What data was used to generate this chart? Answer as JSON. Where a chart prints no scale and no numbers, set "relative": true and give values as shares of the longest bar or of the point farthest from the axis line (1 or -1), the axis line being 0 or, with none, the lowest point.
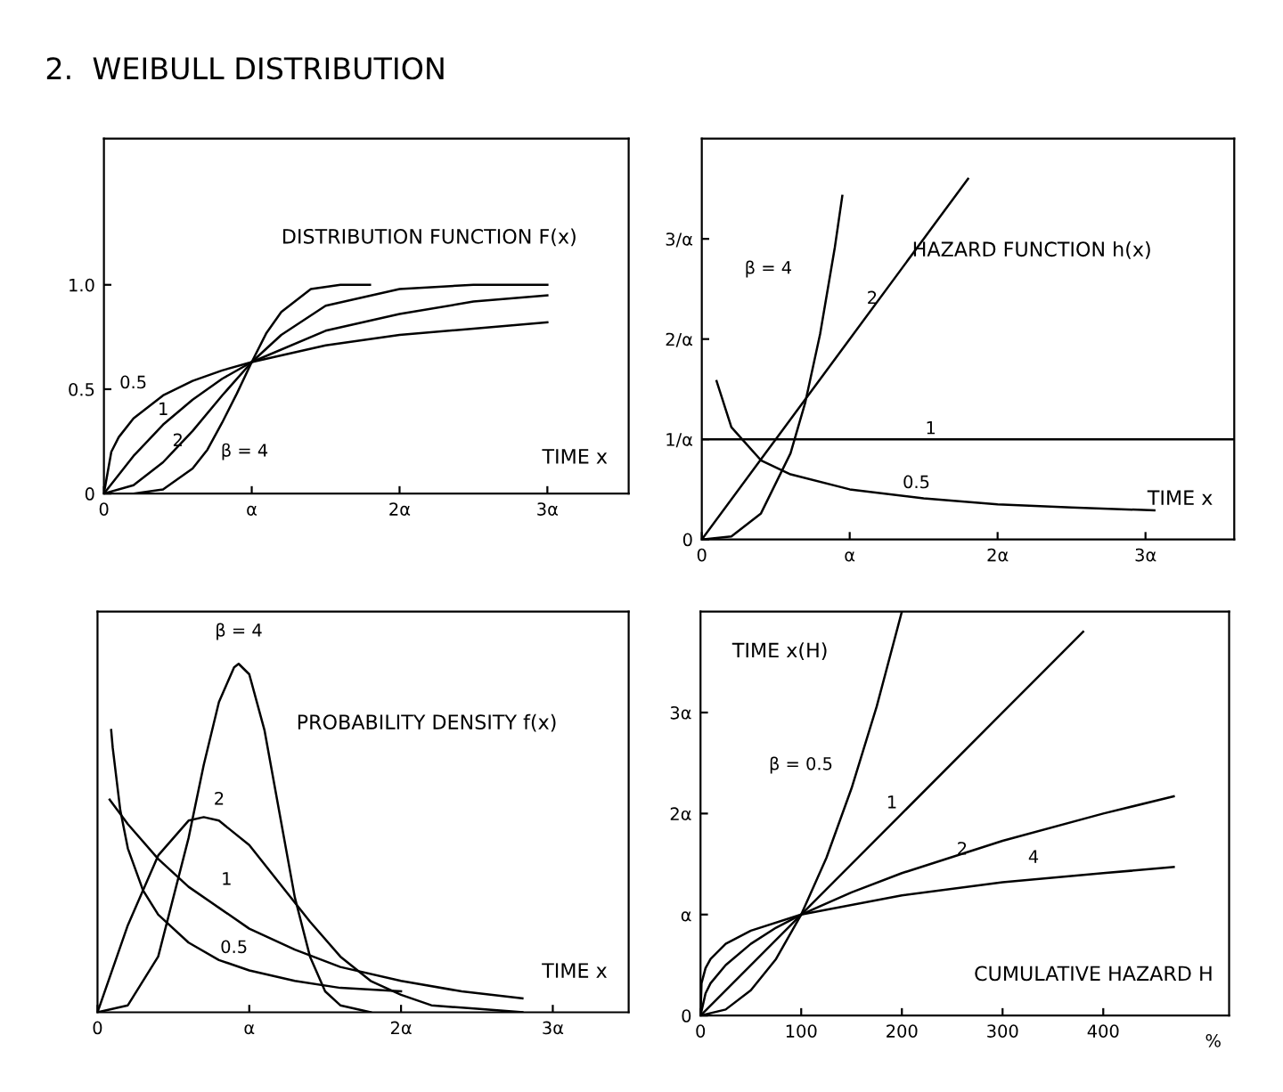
{
  "chart_data": [
    {
      "type": "line",
      "title": "2.  WEIBULL DISTRIBUTION",
      "subtitle": "DISTRIBUTION FUNCTION F(x)",
      "xlabel": "TIME x",
      "xlim": [
        0,
        3.55
      ],
      "ylim": [
        0,
        1.7
      ],
      "xticks": [
        0,
        {
          "value": 1,
          "label": "α"
        },
        {
          "value": 2,
          "label": "2α"
        },
        {
          "value": 3,
          "label": "3α"
        }
      ],
      "yticks": [
        0,
        0.5,
        {
          "value": 1,
          "label": "1.0"
        }
      ],
      "series": [
        {
          "name": "0.5",
          "color": "#000000",
          "x": [
            0,
            0.05,
            0.1,
            0.2,
            0.4,
            0.6,
            0.8,
            1,
            1.5,
            2,
            2.5,
            3
          ],
          "values": [
            0,
            0.2,
            0.27,
            0.36,
            0.47,
            0.54,
            0.59,
            0.63,
            0.71,
            0.76,
            0.79,
            0.82
          ]
        },
        {
          "name": "1",
          "color": "#000000",
          "x": [
            0,
            0.2,
            0.4,
            0.6,
            0.8,
            1,
            1.5,
            2,
            2.5,
            3
          ],
          "values": [
            0,
            0.18,
            0.33,
            0.45,
            0.55,
            0.63,
            0.78,
            0.86,
            0.92,
            0.95
          ]
        },
        {
          "name": "2",
          "color": "#000000",
          "x": [
            0,
            0.2,
            0.4,
            0.6,
            0.8,
            1,
            1.2,
            1.5,
            2,
            2.5,
            3
          ],
          "values": [
            0,
            0.04,
            0.15,
            0.3,
            0.47,
            0.63,
            0.76,
            0.9,
            0.98,
            1.0,
            1.0
          ]
        },
        {
          "name": "β = 4",
          "color": "#000000",
          "x": [
            0,
            0.2,
            0.4,
            0.6,
            0.7,
            0.8,
            0.9,
            1,
            1.1,
            1.2,
            1.4,
            1.6,
            1.8
          ],
          "values": [
            0,
            0,
            0.02,
            0.12,
            0.21,
            0.34,
            0.48,
            0.63,
            0.77,
            0.87,
            0.98,
            1.0,
            1.0
          ]
        }
      ]
    },
    {
      "type": "line",
      "subtitle": "HAZARD FUNCTION h(x)",
      "xlabel": "TIME x",
      "xlim": [
        0,
        3.6
      ],
      "ylim": [
        0,
        4
      ],
      "xticks": [
        0,
        {
          "value": 1,
          "label": "α"
        },
        {
          "value": 2,
          "label": "2α"
        },
        {
          "value": 3,
          "label": "3α"
        }
      ],
      "yticks": [
        0,
        {
          "value": 1,
          "label": "1/α"
        },
        {
          "value": 2,
          "label": "2/α"
        },
        {
          "value": 3,
          "label": "3/α"
        }
      ],
      "series": [
        {
          "name": "0.5",
          "color": "#000000",
          "x": [
            0.1,
            0.2,
            0.4,
            0.6,
            1,
            1.5,
            2,
            2.5,
            3.06
          ],
          "values": [
            1.58,
            1.12,
            0.79,
            0.65,
            0.5,
            0.41,
            0.35,
            0.32,
            0.29
          ]
        },
        {
          "name": "1",
          "color": "#000000",
          "x": [
            0,
            3.6
          ],
          "values": [
            1,
            1
          ]
        },
        {
          "name": "2",
          "color": "#000000",
          "x": [
            0,
            0.5,
            1,
            1.5,
            1.8
          ],
          "values": [
            0,
            1,
            2,
            3,
            3.6
          ]
        },
        {
          "name": "β = 4",
          "color": "#000000",
          "x": [
            0,
            0.2,
            0.4,
            0.6,
            0.7,
            0.8,
            0.9,
            0.95
          ],
          "values": [
            0,
            0.03,
            0.26,
            0.86,
            1.37,
            2.05,
            2.92,
            3.43
          ]
        }
      ]
    },
    {
      "type": "line",
      "subtitle": "PROBABILITY DENSITY f(x)",
      "xlabel": "TIME x",
      "relative": true,
      "tick_labels": "x",
      "xlim": [
        0,
        3.5
      ],
      "xticks": [
        0,
        {
          "value": 1,
          "label": "α"
        },
        {
          "value": 2,
          "label": "2α"
        },
        {
          "value": 3,
          "label": "3α"
        }
      ],
      "series": [
        {
          "name": "0.5",
          "color": "#000000",
          "x": [
            0.09,
            0.1,
            0.15,
            0.2,
            0.3,
            0.4,
            0.6,
            0.8,
            1,
            1.3,
            1.6,
            2
          ],
          "values": [
            0.81,
            0.76,
            0.58,
            0.47,
            0.35,
            0.28,
            0.2,
            0.15,
            0.12,
            0.09,
            0.07,
            0.06
          ]
        },
        {
          "name": "1",
          "color": "#000000",
          "x": [
            0.08,
            0.2,
            0.4,
            0.6,
            0.8,
            1,
            1.3,
            1.6,
            2,
            2.4,
            2.8
          ],
          "values": [
            0.61,
            0.54,
            0.44,
            0.36,
            0.3,
            0.24,
            0.18,
            0.13,
            0.09,
            0.06,
            0.04
          ]
        },
        {
          "name": "2",
          "color": "#000000",
          "x": [
            0,
            0.2,
            0.4,
            0.6,
            0.7,
            0.8,
            1,
            1.2,
            1.4,
            1.6,
            1.8,
            2,
            2.2,
            2.5,
            2.8
          ],
          "values": [
            0,
            0.25,
            0.45,
            0.55,
            0.56,
            0.55,
            0.48,
            0.37,
            0.26,
            0.16,
            0.09,
            0.05,
            0.02,
            0.01,
            0
          ]
        },
        {
          "name": "β = 4",
          "color": "#000000",
          "x": [
            0,
            0.2,
            0.4,
            0.6,
            0.7,
            0.8,
            0.9,
            0.93,
            1,
            1.1,
            1.2,
            1.3,
            1.4,
            1.5,
            1.6,
            1.8
          ],
          "values": [
            0,
            0.02,
            0.16,
            0.5,
            0.71,
            0.89,
            0.99,
            1,
            0.97,
            0.81,
            0.57,
            0.33,
            0.16,
            0.06,
            0.02,
            0
          ]
        }
      ]
    },
    {
      "type": "line",
      "subtitle": "CUMULATIVE HAZARD H",
      "ylabel": "TIME x(H)",
      "xlim": [
        0,
        525
      ],
      "ylim": [
        0,
        4
      ],
      "xticks": [
        0,
        100,
        200,
        300,
        400
      ],
      "yticks": [
        0,
        {
          "value": 1,
          "label": "α"
        },
        {
          "value": 2,
          "label": "2α"
        },
        {
          "value": 3,
          "label": "3α"
        }
      ],
      "series": [
        {
          "name": "β = 0.5",
          "color": "#000000",
          "x": [
            0,
            25,
            50,
            75,
            100,
            125,
            150,
            175,
            200
          ],
          "values": [
            0,
            0.06,
            0.25,
            0.56,
            1,
            1.56,
            2.25,
            3.06,
            4
          ]
        },
        {
          "name": "1",
          "color": "#000000",
          "x": [
            0,
            100,
            200,
            300,
            380
          ],
          "values": [
            0,
            1,
            2,
            3,
            3.8
          ]
        },
        {
          "name": "2",
          "color": "#000000",
          "x": [
            0,
            5,
            10,
            25,
            50,
            75,
            100,
            150,
            200,
            300,
            400,
            470
          ],
          "values": [
            0,
            0.22,
            0.32,
            0.5,
            0.71,
            0.87,
            1,
            1.22,
            1.41,
            1.73,
            2,
            2.17
          ]
        },
        {
          "name": "4",
          "color": "#000000",
          "x": [
            0,
            1,
            5,
            10,
            25,
            50,
            100,
            200,
            300,
            400,
            470
          ],
          "values": [
            0,
            0.32,
            0.47,
            0.56,
            0.71,
            0.84,
            1,
            1.19,
            1.32,
            1.41,
            1.47
          ]
        }
      ],
      "annotations": [
        "%"
      ]
    }
  ]
}
